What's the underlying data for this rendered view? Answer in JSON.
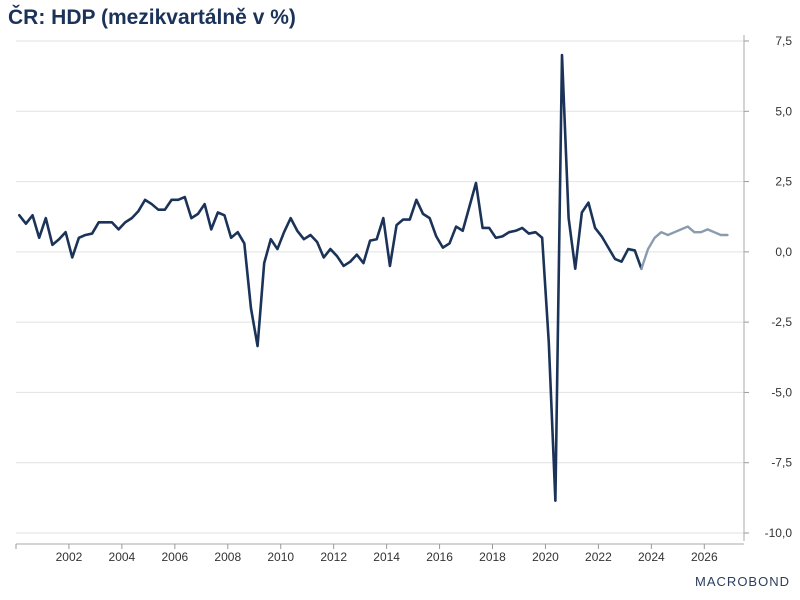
{
  "chart_data": {
    "type": "line",
    "title": "ČR: HDP (mezikvartálně v %)",
    "xlabel": "",
    "ylabel": "",
    "ylim": [
      -10,
      7.5
    ],
    "xlim": [
      2000,
      2027.5
    ],
    "grid": true,
    "y_axis_side": "right",
    "x_tick_labels": [
      "2002",
      "2004",
      "2006",
      "2008",
      "2010",
      "2012",
      "2014",
      "2016",
      "2018",
      "2020",
      "2022",
      "2024",
      "2026"
    ],
    "x_ticks": [
      2002,
      2004,
      2006,
      2008,
      2010,
      2012,
      2014,
      2016,
      2018,
      2020,
      2022,
      2024,
      2026
    ],
    "y_tick_labels": [
      "7,5",
      "5,0",
      "2,5",
      "0,0",
      "-2,5",
      "-5,0",
      "-7,5",
      "-10,0"
    ],
    "y_ticks": [
      7.5,
      5,
      2.5,
      0,
      -2.5,
      -5,
      -7.5,
      -10
    ],
    "series": [
      {
        "color": "#1b3358",
        "x": [
          2000.125,
          2000.375,
          2000.625,
          2000.875,
          2001.125,
          2001.375,
          2001.625,
          2001.875,
          2002.125,
          2002.375,
          2002.625,
          2002.875,
          2003.125,
          2003.375,
          2003.625,
          2003.875,
          2004.125,
          2004.375,
          2004.625,
          2004.875,
          2005.125,
          2005.375,
          2005.625,
          2005.875,
          2006.125,
          2006.375,
          2006.625,
          2006.875,
          2007.125,
          2007.375,
          2007.625,
          2007.875,
          2008.125,
          2008.375,
          2008.625,
          2008.875,
          2009.125,
          2009.375,
          2009.625,
          2009.875,
          2010.125,
          2010.375,
          2010.625,
          2010.875,
          2011.125,
          2011.375,
          2011.625,
          2011.875,
          2012.125,
          2012.375,
          2012.625,
          2012.875,
          2013.125,
          2013.375,
          2013.625,
          2013.875,
          2014.125,
          2014.375,
          2014.625,
          2014.875,
          2015.125,
          2015.375,
          2015.625,
          2015.875,
          2016.125,
          2016.375,
          2016.625,
          2016.875,
          2017.125,
          2017.375,
          2017.625,
          2017.875,
          2018.125,
          2018.375,
          2018.625,
          2018.875,
          2019.125,
          2019.375,
          2019.625,
          2019.875,
          2020.125,
          2020.375,
          2020.625,
          2020.875,
          2021.125,
          2021.375,
          2021.625,
          2021.875,
          2022.125,
          2022.375,
          2022.625,
          2022.875,
          2023.125,
          2023.375,
          2023.625
        ],
        "values": [
          1.3,
          1.0,
          1.3,
          0.5,
          1.2,
          0.25,
          0.45,
          0.7,
          -0.2,
          0.5,
          0.6,
          0.65,
          1.05,
          1.05,
          1.05,
          0.8,
          1.05,
          1.2,
          1.45,
          1.85,
          1.7,
          1.5,
          1.5,
          1.85,
          1.85,
          1.95,
          1.2,
          1.35,
          1.7,
          0.8,
          1.4,
          1.3,
          0.5,
          0.7,
          0.3,
          -2.0,
          -3.35,
          -0.4,
          0.45,
          0.1,
          0.7,
          1.2,
          0.75,
          0.45,
          0.6,
          0.35,
          -0.2,
          0.1,
          -0.15,
          -0.5,
          -0.35,
          -0.1,
          -0.4,
          0.4,
          0.45,
          1.2,
          -0.5,
          0.95,
          1.15,
          1.15,
          1.85,
          1.35,
          1.2,
          0.55,
          0.15,
          0.3,
          0.9,
          0.75,
          1.6,
          2.45,
          0.85,
          0.85,
          0.5,
          0.55,
          0.7,
          0.75,
          0.85,
          0.65,
          0.7,
          0.5,
          -3.2,
          -8.85,
          7.0,
          1.2,
          -0.6,
          1.4,
          1.75,
          0.85,
          0.55,
          0.15,
          -0.25,
          -0.35,
          0.1,
          0.05,
          -0.6
        ]
      },
      {
        "color": "#8a9bb0",
        "x": [
          2023.625,
          2023.875,
          2024.125,
          2024.375,
          2024.625,
          2024.875,
          2025.125,
          2025.375,
          2025.625,
          2025.875,
          2026.125,
          2026.375,
          2026.625,
          2026.875
        ],
        "values": [
          -0.6,
          0.1,
          0.5,
          0.7,
          0.6,
          0.7,
          0.8,
          0.9,
          0.7,
          0.7,
          0.8,
          0.7,
          0.6,
          0.6
        ]
      }
    ]
  },
  "watermark": "MACROBOND"
}
